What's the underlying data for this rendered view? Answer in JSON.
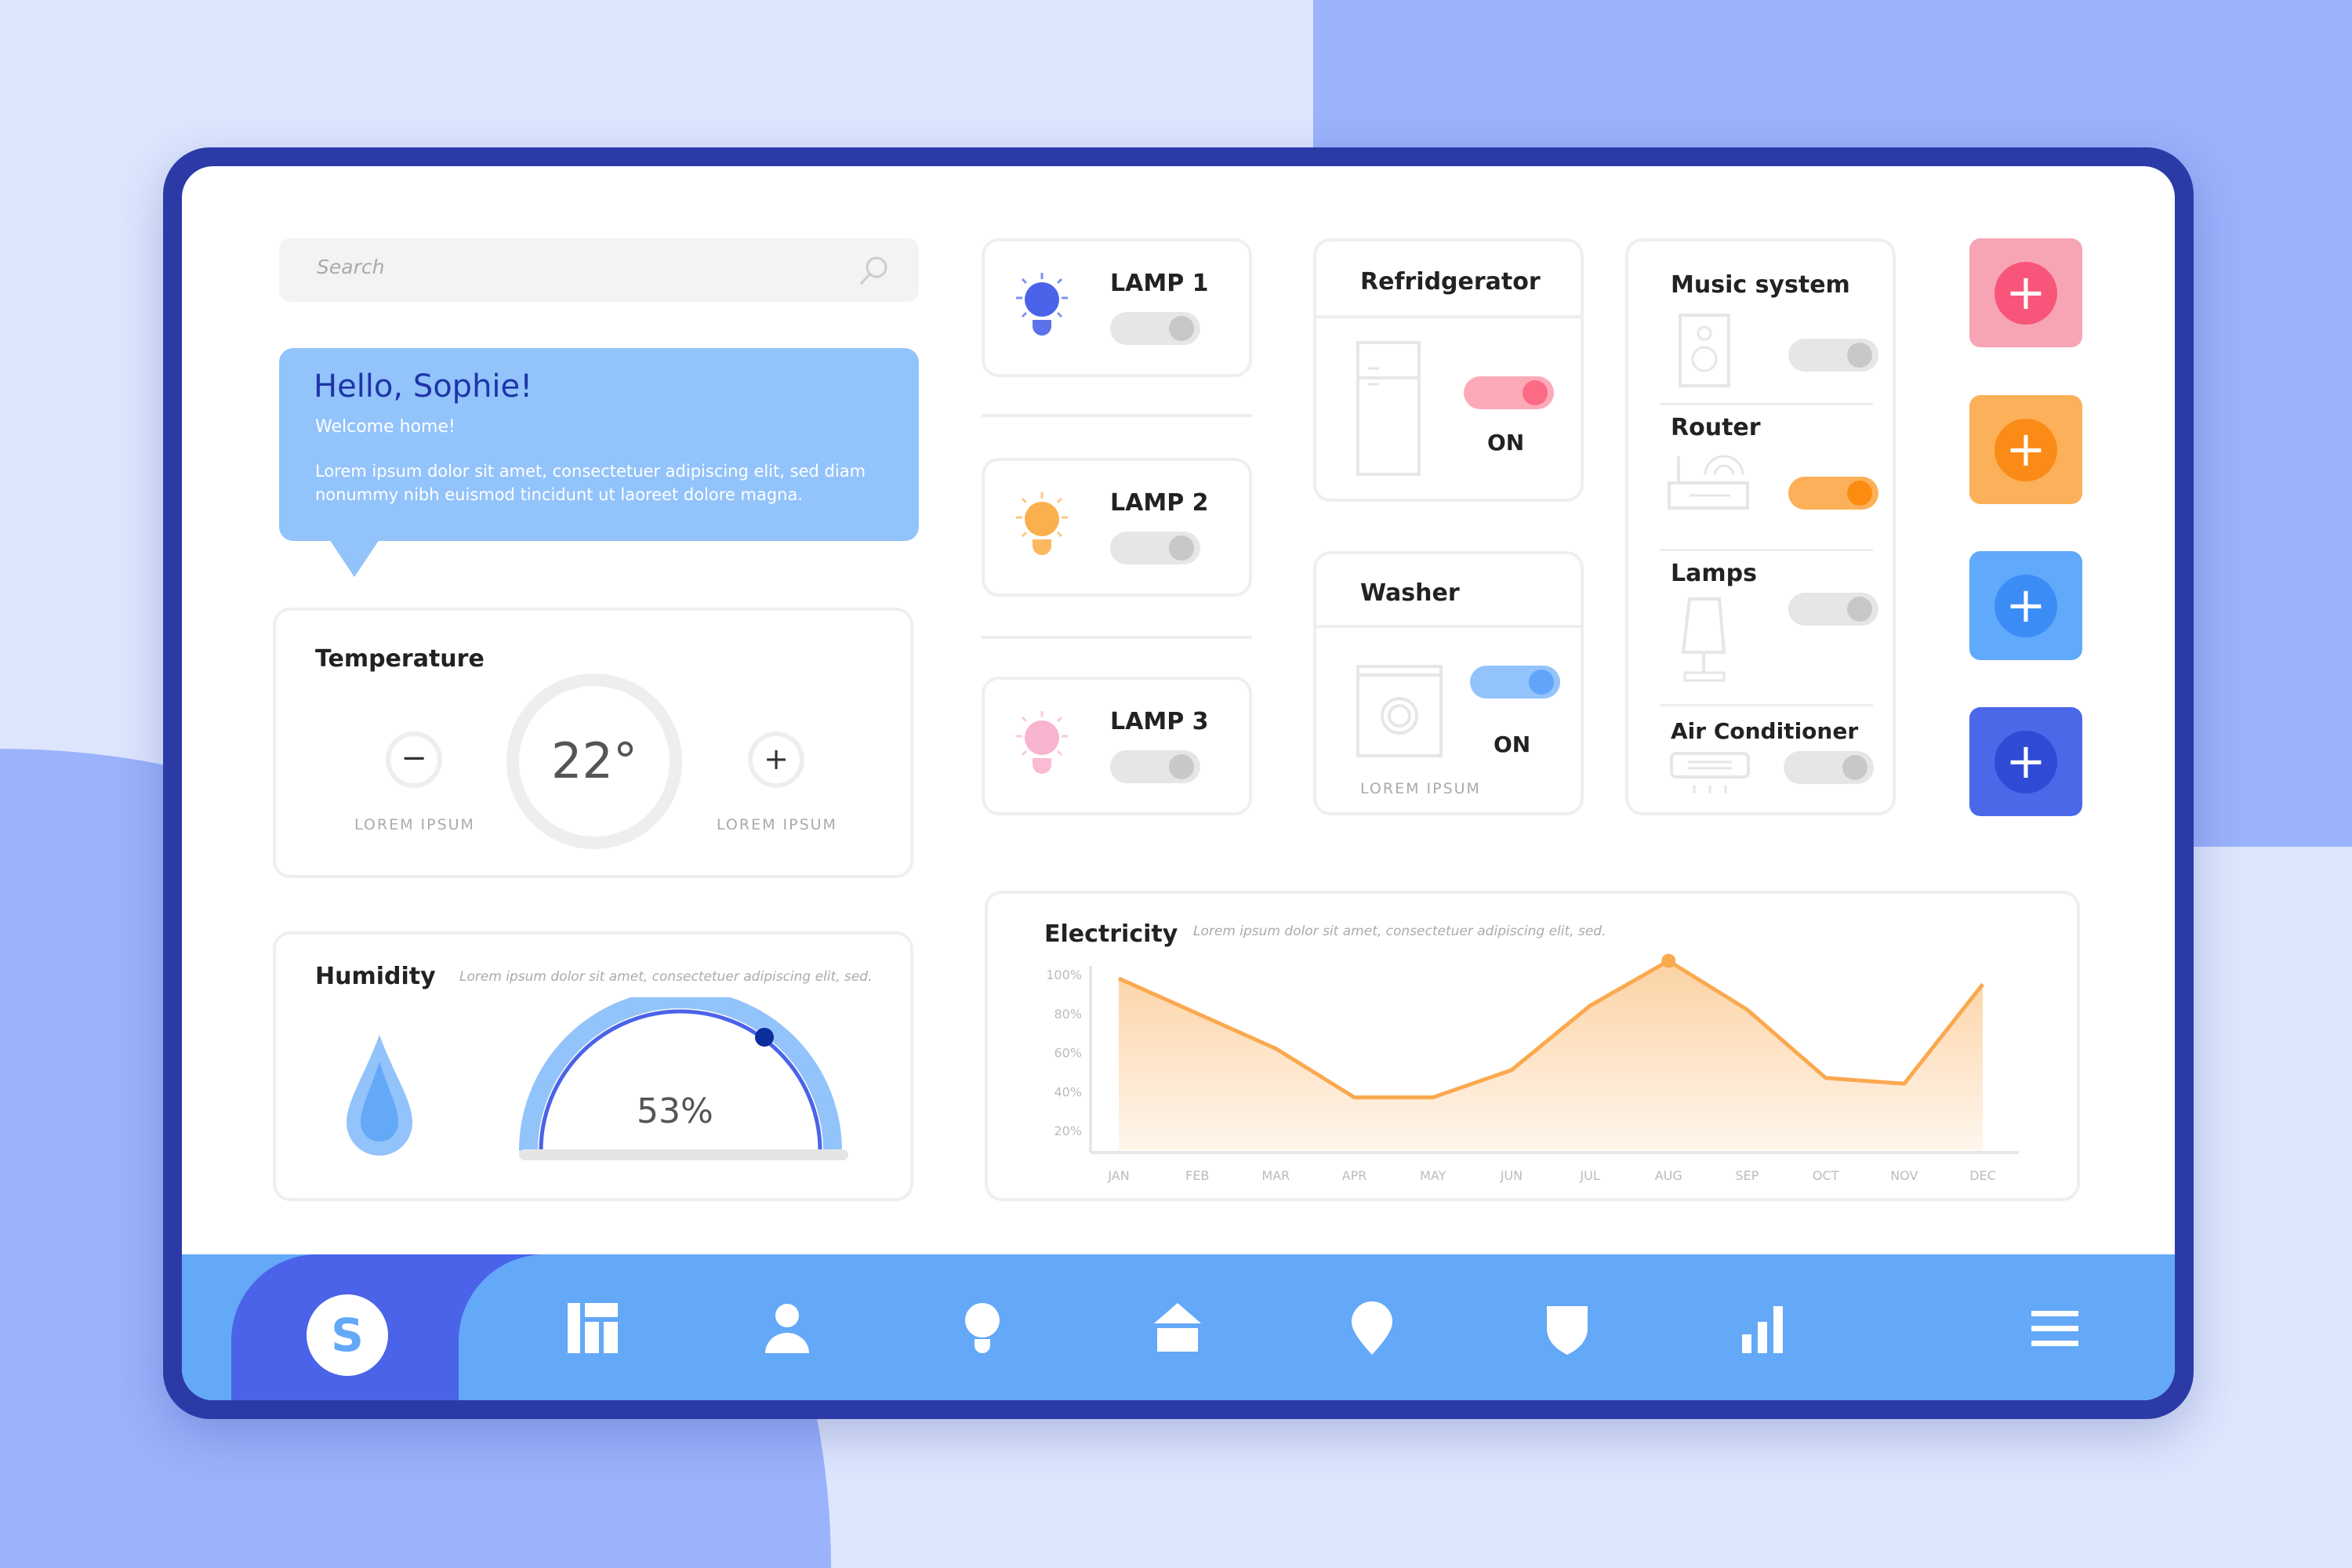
{
  "search": {
    "placeholder": "Search"
  },
  "greeting": {
    "title": "Hello, Sophie!",
    "subtitle": "Welcome home!",
    "body": "Lorem ipsum dolor sit amet, consectetuer adipiscing elit, sed diam nonummy nibh euismod tincidunt ut laoreet dolore magna."
  },
  "temperature": {
    "title": "Temperature",
    "value": "22°",
    "minus_label": "LOREM IPSUM",
    "plus_label": "LOREM IPSUM"
  },
  "humidity": {
    "title": "Humidity",
    "description": "Lorem ipsum dolor sit amet, consectetuer adipiscing elit, sed.",
    "value": "53%",
    "level": 0.53
  },
  "lamps": [
    {
      "label": "LAMP 1",
      "color": "#4a63e8",
      "on": false
    },
    {
      "label": "LAMP 2",
      "color": "#fbb04e",
      "on": false
    },
    {
      "label": "LAMP 3",
      "color": "#f9b4cf",
      "on": false
    }
  ],
  "refrigerator": {
    "title": "Refridgerator",
    "state": "ON",
    "on": true,
    "color": "#fb6b86"
  },
  "washer": {
    "title": "Washer",
    "state": "ON",
    "on": true,
    "footer": "LOREM IPSUM",
    "color": "#60a5fa"
  },
  "devices": [
    {
      "label": "Music system",
      "on": false
    },
    {
      "label": "Router",
      "on": true,
      "color": "#fb8c0f"
    },
    {
      "label": "Lamps",
      "on": false
    },
    {
      "label": "Air Conditioner",
      "on": false
    }
  ],
  "add_buttons": [
    {
      "color": "#f7a5b5",
      "accent": "#f7567a"
    },
    {
      "color": "#fdb05a",
      "accent": "#f98b16"
    },
    {
      "color": "#60a9fb",
      "accent": "#3b8cf5"
    },
    {
      "color": "#4a68e8",
      "accent": "#2f4bd6"
    }
  ],
  "chart_data": {
    "type": "area",
    "title": "Electricity",
    "subtitle": "Lorem ipsum dolor sit amet, consectetuer adipiscing elit, sed.",
    "categories": [
      "JAN",
      "FEB",
      "MAR",
      "APR",
      "MAY",
      "JUN",
      "JUL",
      "AUG",
      "SEP",
      "OCT",
      "NOV",
      "DEC"
    ],
    "values": [
      98,
      80,
      62,
      37,
      37,
      51,
      84,
      107,
      82,
      47,
      44,
      95
    ],
    "yticks": [
      "100%",
      "80%",
      "60%",
      "40%",
      "20%"
    ],
    "ylim": [
      10,
      110
    ],
    "highlight": "AUG",
    "color": "#fba94f"
  },
  "nav": {
    "avatar": "S",
    "items": [
      "dashboard-icon",
      "user-icon",
      "bulb-icon",
      "home-icon",
      "location-icon",
      "shield-icon",
      "stats-icon",
      "menu-icon"
    ]
  }
}
